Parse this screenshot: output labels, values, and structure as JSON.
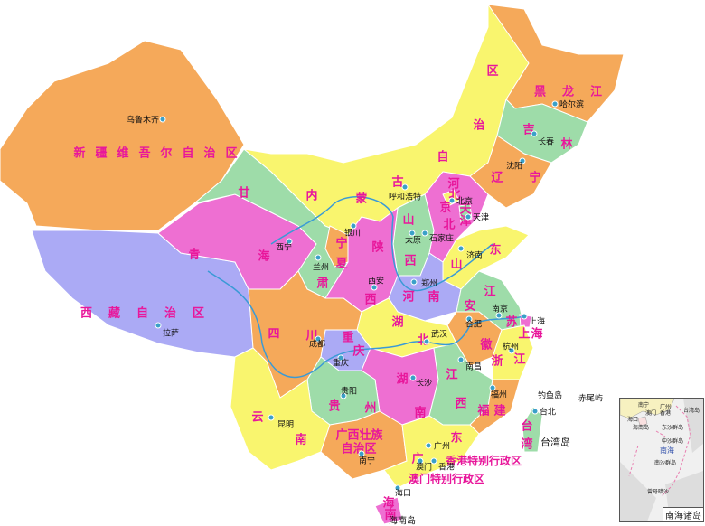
{
  "colors": {
    "orange": "#f5a95a",
    "yellow": "#f9f56e",
    "pink": "#ee6fd2",
    "green": "#9edca9",
    "lavender": "#abaaf5",
    "sea": "#ffffff",
    "river": "#3a9ad6",
    "label": "#e8179b"
  },
  "provinces": [
    {
      "id": "xinjiang",
      "name": "新疆维吾尔自治区",
      "color": "orange"
    },
    {
      "id": "xizang",
      "name": "西藏自治区",
      "color": "lavender"
    },
    {
      "id": "qinghai",
      "name": "青海",
      "color": "pink"
    },
    {
      "id": "gansu",
      "name": "甘肃",
      "color": "green"
    },
    {
      "id": "neimenggu",
      "name": "内蒙古自治区",
      "color": "yellow"
    },
    {
      "id": "heilongjiang",
      "name": "黑龙江",
      "color": "orange"
    },
    {
      "id": "jilin",
      "name": "吉林",
      "color": "green"
    },
    {
      "id": "liaoning",
      "name": "辽宁",
      "color": "orange"
    },
    {
      "id": "hebei",
      "name": "河北",
      "color": "pink"
    },
    {
      "id": "beijing",
      "name": "北京",
      "color": "yellow"
    },
    {
      "id": "tianjin",
      "name": "天津",
      "color": "green"
    },
    {
      "id": "shanxi",
      "name": "山西",
      "color": "green"
    },
    {
      "id": "shaanxi",
      "name": "陕西",
      "color": "pink"
    },
    {
      "id": "ningxia",
      "name": "宁夏",
      "color": "orange"
    },
    {
      "id": "shandong",
      "name": "山东",
      "color": "yellow"
    },
    {
      "id": "henan",
      "name": "河南",
      "color": "lavender"
    },
    {
      "id": "jiangsu",
      "name": "江苏",
      "color": "green"
    },
    {
      "id": "anhui",
      "name": "安徽",
      "color": "orange"
    },
    {
      "id": "shanghai",
      "name": "上海",
      "color": "pink"
    },
    {
      "id": "zhejiang",
      "name": "浙江",
      "color": "yellow"
    },
    {
      "id": "hubei",
      "name": "湖北",
      "color": "yellow"
    },
    {
      "id": "chongqing",
      "name": "重庆",
      "color": "lavender"
    },
    {
      "id": "sichuan",
      "name": "四川",
      "color": "orange"
    },
    {
      "id": "hunan",
      "name": "湖南",
      "color": "pink"
    },
    {
      "id": "jiangxi",
      "name": "江西",
      "color": "green"
    },
    {
      "id": "fujian",
      "name": "福建",
      "color": "orange"
    },
    {
      "id": "guizhou",
      "name": "贵州",
      "color": "green"
    },
    {
      "id": "yunnan",
      "name": "云南",
      "color": "yellow"
    },
    {
      "id": "guangxi",
      "name": "广西壮族自治区",
      "color": "orange"
    },
    {
      "id": "guangdong",
      "name": "广东",
      "color": "yellow"
    },
    {
      "id": "taiwan",
      "name": "台湾",
      "color": "green"
    },
    {
      "id": "hainan",
      "name": "海南",
      "color": "pink"
    }
  ],
  "sars": [
    "香港特别行政区",
    "澳门特别行政区"
  ],
  "cities": [
    "乌鲁木齐",
    "哈尔滨",
    "长春",
    "沈阳",
    "呼和浩特",
    "北京",
    "天津",
    "石家庄",
    "太原",
    "银川",
    "西宁",
    "兰州",
    "西安",
    "郑州",
    "济南",
    "南京",
    "合肥",
    "上海",
    "杭州",
    "武汉",
    "成都",
    "重庆",
    "南昌",
    "长沙",
    "贵阳",
    "福州",
    "台北",
    "昆明",
    "广州",
    "南宁",
    "澳门",
    "香港",
    "海口",
    "拉萨"
  ],
  "islands": [
    "钓鱼岛",
    "赤尾屿",
    "台湾岛",
    "海南岛"
  ],
  "inset": {
    "title": "南海诸岛",
    "labels": [
      "南宁",
      "广州",
      "澳门",
      "香港",
      "台湾岛",
      "海口",
      "海南岛",
      "东沙群岛",
      "中沙群岛",
      "南海",
      "南沙群岛",
      "曾母暗沙"
    ]
  }
}
